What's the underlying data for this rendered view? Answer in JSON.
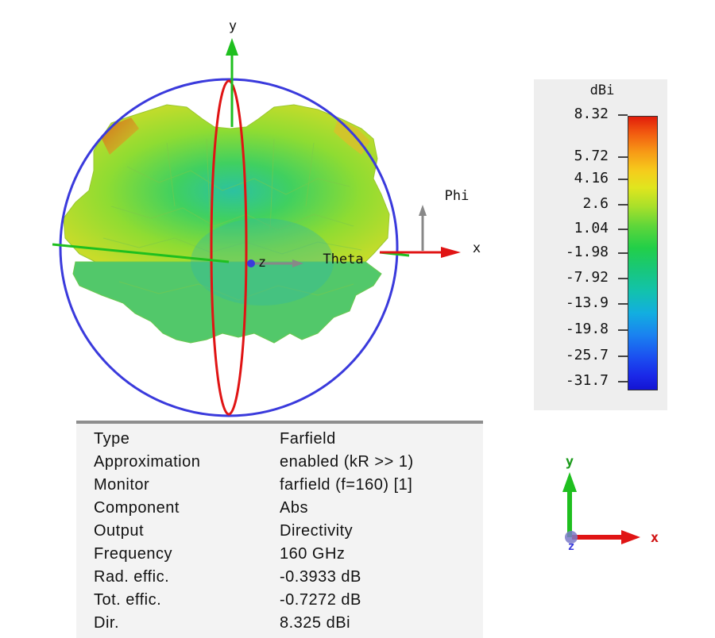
{
  "axes": {
    "y": "y",
    "x": "x",
    "z": "z",
    "phi": "Phi",
    "theta": "Theta"
  },
  "legend": {
    "unit": "dBi",
    "ticks": [
      "8.32",
      "5.72",
      "4.16",
      "2.6",
      "1.04",
      "-1.98",
      "-7.92",
      "-13.9",
      "-19.8",
      "-25.7",
      "-31.7"
    ]
  },
  "info": {
    "rows": [
      {
        "key": "Type",
        "value": "Farfield"
      },
      {
        "key": "Approximation",
        "value": "enabled (kR >> 1)"
      },
      {
        "key": "Monitor",
        "value": "farfield (f=160) [1]"
      },
      {
        "key": "Component",
        "value": "Abs"
      },
      {
        "key": "Output",
        "value": "Directivity"
      },
      {
        "key": "Frequency",
        "value": "160 GHz"
      },
      {
        "key": "Rad. effic.",
        "value": "-0.3933 dB"
      },
      {
        "key": "Tot. effic.",
        "value": "-0.7272 dB"
      },
      {
        "key": "Dir.",
        "value": "8.325 dBi"
      }
    ]
  },
  "mini_axes": {
    "y": "y",
    "x": "x",
    "z": "z"
  },
  "colors": {
    "sphere_circle": "#3a3adc",
    "theta_ring": "#e01414",
    "axis_green": "#1fbf1f",
    "axis_red": "#e01414",
    "axis_gray": "#808080"
  }
}
